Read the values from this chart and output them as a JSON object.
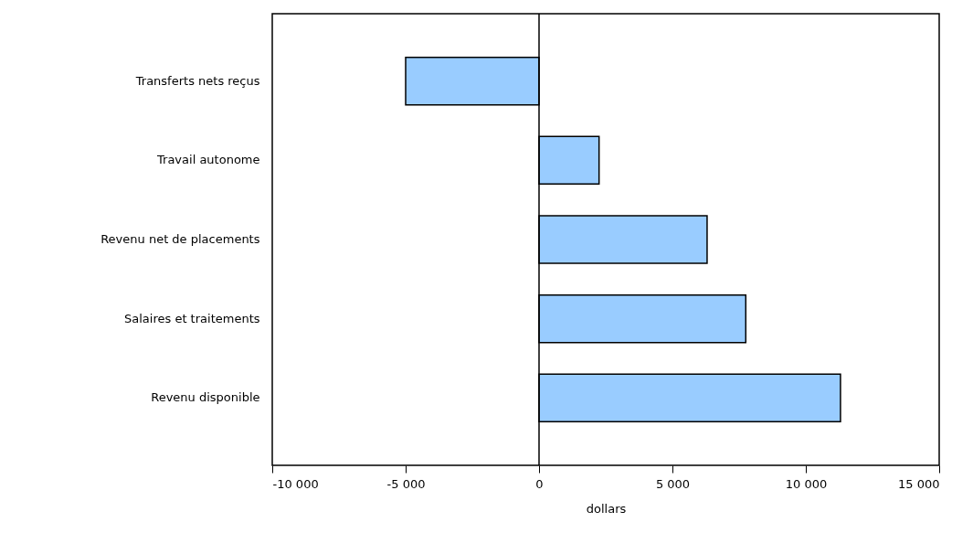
{
  "chart_data": {
    "type": "bar",
    "orientation": "horizontal",
    "xlabel": "dollars",
    "categories": [
      "Transferts nets reçus",
      "Travail autonome",
      "Revenu net de placements",
      "Salaires et traitements",
      "Revenu disponible"
    ],
    "values": [
      -5000,
      2250,
      6300,
      7750,
      11300
    ],
    "color": "#99ccff",
    "xlim": [
      -10000,
      15000
    ],
    "xticks": [
      {
        "value": -10000,
        "label": "-10 000"
      },
      {
        "value": -5000,
        "label": "-5 000"
      },
      0,
      {
        "value": 5000,
        "label": "5 000"
      },
      {
        "value": 10000,
        "label": "10 000"
      },
      {
        "value": 15000,
        "label": "15 000"
      }
    ],
    "ref_lines": [
      {
        "axis": "x",
        "value": 0,
        "color": "#000000"
      }
    ],
    "grid": false
  }
}
